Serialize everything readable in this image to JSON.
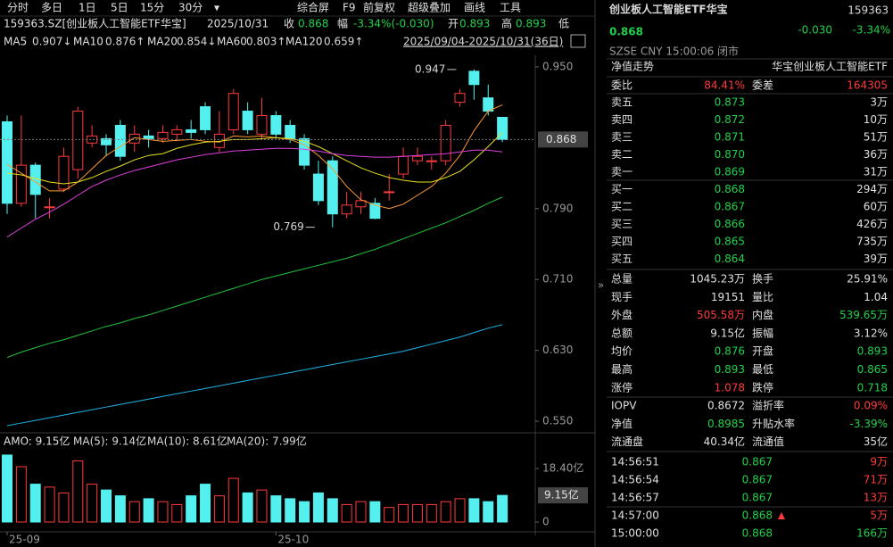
{
  "toolbar": {
    "tabs": [
      "分时",
      "多日",
      "1日",
      "5日",
      "15分",
      "30分",
      "▾"
    ],
    "tools": [
      "综合屏",
      "F9",
      "前复权",
      "超级叠加",
      "画线",
      "工具"
    ]
  },
  "info_line": {
    "code": "159363.SZ[创业板人工智能ETF华宝]",
    "date": "2025/10/31",
    "close_label": "收",
    "close": "0.868",
    "change_label": "幅",
    "change": "-3.34%(-0.030)",
    "open_label": "开",
    "open": "0.893",
    "high_label": "高",
    "high": "0.893",
    "low_label": "低"
  },
  "range": "2025/09/04-2025/10/31(36日)",
  "chart_data": [
    {
      "type": "candlestick",
      "up_color": "#ff3b3b",
      "down_color": "#54f0f0",
      "open": [
        0.888,
        0.796,
        0.839,
        0.792,
        0.812,
        0.834,
        0.864,
        0.869,
        0.884,
        0.864,
        0.872,
        0.869,
        0.874,
        0.879,
        0.905,
        0.859,
        0.879,
        0.9,
        0.874,
        0.895,
        0.884,
        0.869,
        0.829,
        0.844,
        0.784,
        0.792,
        0.796,
        0.809,
        0.829,
        0.844,
        0.844,
        0.844,
        0.91,
        0.945,
        0.915,
        0.893
      ],
      "close": [
        0.796,
        0.839,
        0.806,
        0.792,
        0.849,
        0.9,
        0.872,
        0.862,
        0.849,
        0.874,
        0.869,
        0.876,
        0.879,
        0.876,
        0.879,
        0.874,
        0.92,
        0.879,
        0.895,
        0.874,
        0.869,
        0.839,
        0.799,
        0.784,
        0.794,
        0.799,
        0.779,
        0.809,
        0.849,
        0.849,
        0.844,
        0.884,
        0.92,
        0.93,
        0.9,
        0.868
      ],
      "high": [
        0.895,
        0.895,
        0.842,
        0.802,
        0.859,
        0.905,
        0.884,
        0.874,
        0.89,
        0.884,
        0.879,
        0.884,
        0.884,
        0.89,
        0.91,
        0.9,
        0.925,
        0.91,
        0.915,
        0.9,
        0.89,
        0.874,
        0.844,
        0.849,
        0.809,
        0.809,
        0.802,
        0.829,
        0.859,
        0.859,
        0.849,
        0.89,
        0.925,
        0.947,
        0.93,
        0.893
      ],
      "low": [
        0.784,
        0.792,
        0.779,
        0.779,
        0.809,
        0.824,
        0.859,
        0.849,
        0.844,
        0.854,
        0.859,
        0.864,
        0.866,
        0.869,
        0.874,
        0.854,
        0.874,
        0.874,
        0.869,
        0.869,
        0.864,
        0.834,
        0.794,
        0.769,
        0.779,
        0.784,
        0.778,
        0.799,
        0.824,
        0.839,
        0.834,
        0.839,
        0.905,
        0.913,
        0.895,
        0.865
      ],
      "series": [
        {
          "name": "MA5",
          "legend_value": "0.907↓",
          "color": "#ff9a2e",
          "values": [
            0.84,
            0.83,
            0.82,
            0.81,
            0.81,
            0.82,
            0.835,
            0.85,
            0.86,
            0.87,
            0.868,
            0.866,
            0.867,
            0.868,
            0.866,
            0.865,
            0.872,
            0.871,
            0.872,
            0.87,
            0.868,
            0.862,
            0.85,
            0.835,
            0.815,
            0.8,
            0.794,
            0.79,
            0.795,
            0.805,
            0.815,
            0.83,
            0.85,
            0.878,
            0.9,
            0.907
          ]
        },
        {
          "name": "MA10",
          "legend_value": "0.876↑",
          "color": "#e8e020",
          "values": [
            0.83,
            0.828,
            0.824,
            0.82,
            0.818,
            0.82,
            0.825,
            0.832,
            0.838,
            0.845,
            0.85,
            0.852,
            0.858,
            0.862,
            0.865,
            0.866,
            0.868,
            0.868,
            0.869,
            0.87,
            0.869,
            0.866,
            0.86,
            0.852,
            0.844,
            0.836,
            0.83,
            0.825,
            0.822,
            0.82,
            0.82,
            0.825,
            0.832,
            0.845,
            0.86,
            0.876
          ]
        },
        {
          "name": "MA20",
          "legend_value": "0.854↓",
          "color": "#e040e0",
          "values": [
            0.758,
            0.768,
            0.778,
            0.786,
            0.795,
            0.805,
            0.815,
            0.822,
            0.828,
            0.833,
            0.837,
            0.841,
            0.845,
            0.848,
            0.851,
            0.853,
            0.855,
            0.856,
            0.857,
            0.858,
            0.858,
            0.857,
            0.855,
            0.852,
            0.85,
            0.849,
            0.848,
            0.848,
            0.849,
            0.85,
            0.851,
            0.852,
            0.854,
            0.856,
            0.856,
            0.854
          ]
        },
        {
          "name": "MA60",
          "legend_value": "0.803↑",
          "color": "#22c43a",
          "values": [
            0.622,
            0.628,
            0.633,
            0.638,
            0.642,
            0.647,
            0.652,
            0.657,
            0.661,
            0.666,
            0.67,
            0.675,
            0.68,
            0.685,
            0.69,
            0.695,
            0.7,
            0.705,
            0.71,
            0.714,
            0.718,
            0.722,
            0.726,
            0.73,
            0.734,
            0.739,
            0.744,
            0.75,
            0.756,
            0.762,
            0.768,
            0.774,
            0.781,
            0.788,
            0.796,
            0.803
          ]
        },
        {
          "name": "MA120",
          "legend_value": "0.659↑",
          "color": "#22b4e8",
          "values": [
            0.545,
            0.548,
            0.551,
            0.554,
            0.557,
            0.56,
            0.563,
            0.566,
            0.569,
            0.572,
            0.575,
            0.578,
            0.581,
            0.584,
            0.587,
            0.59,
            0.593,
            0.596,
            0.599,
            0.602,
            0.605,
            0.608,
            0.611,
            0.614,
            0.617,
            0.62,
            0.623,
            0.626,
            0.629,
            0.633,
            0.637,
            0.641,
            0.645,
            0.65,
            0.655,
            0.659
          ]
        }
      ],
      "ylim": [
        0.54,
        0.963
      ],
      "yticks": [
        {
          "value": 0.95,
          "label": "0.950"
        },
        {
          "value": 0.79,
          "label": "0.790"
        },
        {
          "value": 0.71,
          "label": "0.710"
        },
        {
          "value": 0.63,
          "label": "0.630"
        },
        {
          "value": 0.55,
          "label": "0.550"
        }
      ],
      "annotations": [
        {
          "kind": "max",
          "value": 0.947
        },
        {
          "kind": "min",
          "value": 0.769
        }
      ]
    },
    {
      "type": "bar",
      "title": "AMO: 9.15亿",
      "legend": [
        "MA(5): 9.14亿",
        "MA(10): 8.61亿",
        "MA(20): 7.99亿"
      ],
      "values": [
        23,
        19,
        13,
        12,
        10,
        21,
        13,
        11,
        9,
        7,
        8,
        7,
        6,
        9,
        13,
        9,
        15,
        10,
        11,
        9,
        8,
        7,
        10,
        8,
        6,
        7,
        7,
        5,
        6,
        6,
        6,
        7,
        8,
        8,
        7,
        9.15
      ],
      "last_label": "9.15亿",
      "ylim": [
        0,
        23.6
      ],
      "yticks": [
        {
          "value": 18.4,
          "label": "18.40亿"
        },
        0
      ],
      "xticks": [
        {
          "value": 0,
          "label": "25-09"
        },
        {
          "value": 19,
          "label": "25-10"
        }
      ]
    }
  ],
  "panel": {
    "name": "创业板人工智能ETF华宝",
    "code": "159363",
    "price": "0.868",
    "change": "-0.030",
    "change_pct": "-3.34%",
    "status": "SZSE  CNY  15:00:06  闭市",
    "nav_title": "净值走势",
    "fund_name": "华宝创业板人工智能ETF",
    "ratio": [
      "委比",
      "84.41%",
      "委差",
      "164305"
    ],
    "order_book": [
      [
        "卖五",
        "0.873",
        "3万"
      ],
      [
        "卖四",
        "0.872",
        "10万"
      ],
      [
        "卖三",
        "0.871",
        "51万"
      ],
      [
        "卖二",
        "0.870",
        "36万"
      ],
      [
        "卖一",
        "0.869",
        "31万"
      ],
      [
        "买一",
        "0.868",
        "294万"
      ],
      [
        "买二",
        "0.867",
        "60万"
      ],
      [
        "买三",
        "0.866",
        "426万"
      ],
      [
        "买四",
        "0.865",
        "735万"
      ],
      [
        "买五",
        "0.864",
        "39万"
      ]
    ],
    "stats": [
      [
        "总量",
        "1045.23万",
        "换手",
        "25.91%"
      ],
      [
        "现手",
        "19151",
        "量比",
        "1.04"
      ],
      [
        "外盘",
        "505.58万",
        "内盘",
        "539.65万"
      ],
      [
        "总额",
        "9.15亿",
        "振幅",
        "3.12%"
      ],
      [
        "均价",
        "0.876",
        "开盘",
        "0.893"
      ],
      [
        "最高",
        "0.893",
        "最低",
        "0.865"
      ],
      [
        "涨停",
        "1.078",
        "跌停",
        "0.718"
      ],
      [
        "IOPV",
        "0.8672",
        "溢折率",
        "0.09%"
      ],
      [
        "净值",
        "0.8985",
        "升贴水率",
        "-3.39%"
      ],
      [
        "流通盘",
        "40.34亿",
        "流通值",
        "35亿"
      ]
    ],
    "trades": [
      [
        "14:56:51",
        "0.867",
        "9万"
      ],
      [
        "14:56:54",
        "0.867",
        "71万"
      ],
      [
        "14:56:57",
        "0.867",
        "13万"
      ],
      [
        "14:57:00",
        "0.868",
        "5万"
      ],
      [
        "15:00:00",
        "0.868",
        "166万"
      ]
    ]
  }
}
